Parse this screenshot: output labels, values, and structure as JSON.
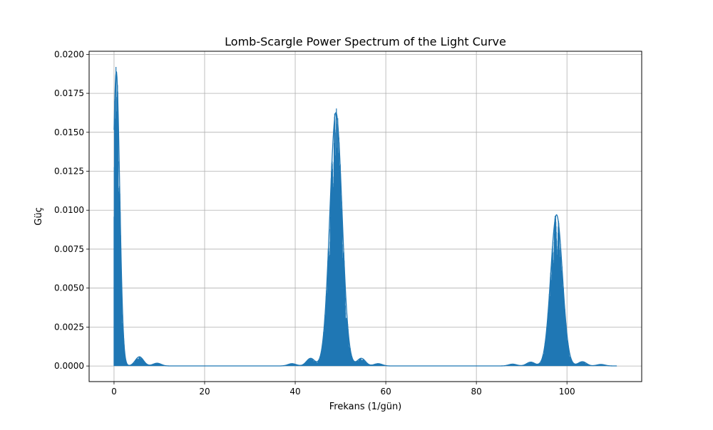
{
  "chart_data": {
    "type": "line",
    "title": "Lomb-Scargle Power Spectrum of the Light Curve",
    "xlabel": "Frekans (1/gün)",
    "ylabel": "Güç",
    "xlim": [
      -5.5,
      116.5
    ],
    "ylim": [
      -0.001,
      0.0202
    ],
    "x_ticks": [
      0,
      20,
      40,
      60,
      80,
      100
    ],
    "x_tick_labels": [
      "0",
      "20",
      "40",
      "60",
      "80",
      "100"
    ],
    "y_ticks": [
      0.0,
      0.0025,
      0.005,
      0.0075,
      0.01,
      0.0125,
      0.015,
      0.0175,
      0.02
    ],
    "y_tick_labels": [
      "0.0000",
      "0.0025",
      "0.0050",
      "0.0075",
      "0.0100",
      "0.0125",
      "0.0150",
      "0.0175",
      "0.0200"
    ],
    "grid": true,
    "line_color": "#1f77b4",
    "x_range": [
      0,
      111
    ],
    "peaks": [
      {
        "center": 0.5,
        "height": 0.0193,
        "width": 0.75
      },
      {
        "center": 49.0,
        "height": 0.0166,
        "width": 1.35
      },
      {
        "center": 97.7,
        "height": 0.0099,
        "width": 1.3
      }
    ],
    "secondary_bumps": [
      {
        "center": 5.6,
        "height": 0.0006
      },
      {
        "center": 9.5,
        "height": 0.00018
      },
      {
        "center": 39.3,
        "height": 0.00015
      },
      {
        "center": 43.4,
        "height": 0.0005
      },
      {
        "center": 54.6,
        "height": 0.0005
      },
      {
        "center": 58.3,
        "height": 0.00015
      },
      {
        "center": 88.0,
        "height": 0.00012
      },
      {
        "center": 92.0,
        "height": 0.00025
      },
      {
        "center": 103.4,
        "height": 0.00028
      },
      {
        "center": 107.5,
        "height": 0.0001
      }
    ]
  }
}
